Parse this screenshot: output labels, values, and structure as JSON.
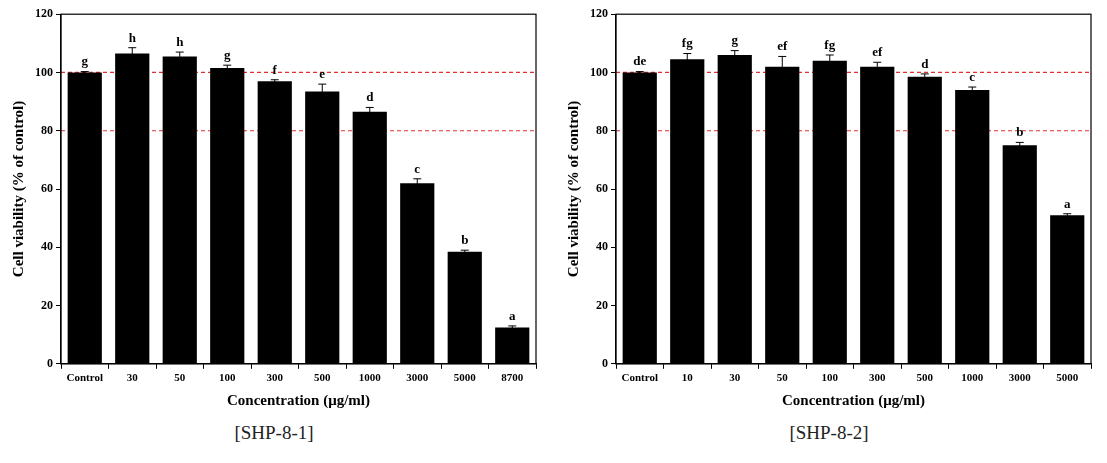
{
  "chart_data": [
    {
      "type": "bar",
      "caption": "[SHP-8-1]",
      "x_label": "Concentration (μg/ml)",
      "y_label": "Cell viability (% of control)",
      "categories": [
        "Control",
        "30",
        "50",
        "100",
        "300",
        "500",
        "1000",
        "3000",
        "5000",
        "8700"
      ],
      "values": [
        100,
        106.5,
        105.5,
        101.5,
        97,
        93.5,
        86.5,
        62,
        38.5,
        12.5
      ],
      "errors": [
        0.3,
        2,
        1.5,
        1,
        0.5,
        2.5,
        1.5,
        1.5,
        0.5,
        0.5
      ],
      "annotations": [
        "g",
        "h",
        "h",
        "g",
        "f",
        "e",
        "d",
        "c",
        "b",
        "a"
      ],
      "color": "#000000",
      "reference_lines": [
        {
          "value": 100,
          "color": "#e03030",
          "line_style": "dashed"
        },
        {
          "value": 80,
          "color": "#e03030",
          "line_style": "dashed"
        }
      ],
      "ylim": [
        0,
        120
      ],
      "yticks": [
        0,
        20,
        40,
        60,
        80,
        100,
        120
      ],
      "grid": false
    },
    {
      "type": "bar",
      "caption": "[SHP-8-2]",
      "x_label": "Concentration (μg/ml)",
      "y_label": "Cell viability (% of control)",
      "categories": [
        "Control",
        "10",
        "30",
        "50",
        "100",
        "300",
        "500",
        "1000",
        "3000",
        "5000"
      ],
      "values": [
        100,
        104.5,
        106,
        102,
        104,
        102,
        98.5,
        94,
        75,
        51
      ],
      "errors": [
        0.3,
        2,
        1.5,
        3.5,
        2,
        1.5,
        1,
        1,
        1,
        0.5
      ],
      "annotations": [
        "de",
        "fg",
        "g",
        "ef",
        "fg",
        "ef",
        "d",
        "c",
        "b",
        "a"
      ],
      "color": "#000000",
      "reference_lines": [
        {
          "value": 100,
          "color": "#e03030",
          "line_style": "dashed"
        },
        {
          "value": 80,
          "color": "#e03030",
          "line_style": "dashed"
        }
      ],
      "ylim": [
        0,
        120
      ],
      "yticks": [
        0,
        20,
        40,
        60,
        80,
        100,
        120
      ],
      "grid": false
    }
  ]
}
